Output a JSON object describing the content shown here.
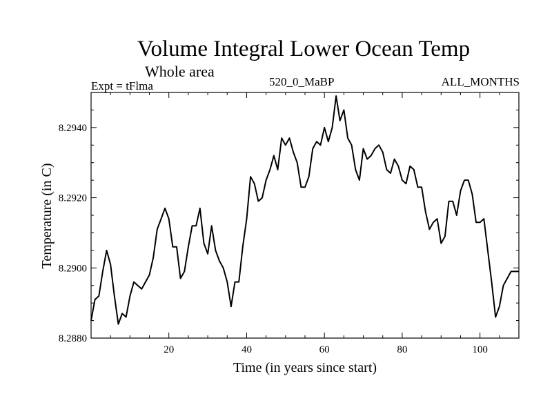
{
  "chart_data": {
    "type": "line",
    "title": "Volume Integral Lower Ocean Temp",
    "subtitle": "Whole area",
    "left_label": "Expt = tFlma",
    "center_label": "520_0_MaBP",
    "right_label": "ALL_MONTHS",
    "xlabel": "Time (in years since start)",
    "ylabel": "Temperature (in C)",
    "xlim": [
      0,
      110
    ],
    "ylim": [
      8.288,
      8.295
    ],
    "x_ticks": [
      20,
      40,
      60,
      80,
      100
    ],
    "x_tick_labels": [
      "20",
      "40",
      "60",
      "80",
      "100"
    ],
    "y_ticks": [
      8.288,
      8.29,
      8.292,
      8.294
    ],
    "y_tick_labels": [
      "8.2880",
      "8.2900",
      "8.2920",
      "8.2940"
    ],
    "grid": false,
    "series": [
      {
        "name": "Volume Integral Lower Ocean Temp",
        "x": [
          0,
          1,
          2,
          3,
          4,
          5,
          6,
          7,
          8,
          9,
          10,
          11,
          12,
          13,
          14,
          15,
          16,
          17,
          18,
          19,
          20,
          21,
          22,
          23,
          24,
          25,
          26,
          27,
          28,
          29,
          30,
          31,
          32,
          33,
          34,
          35,
          36,
          37,
          38,
          39,
          40,
          41,
          42,
          43,
          44,
          45,
          46,
          47,
          48,
          49,
          50,
          51,
          52,
          53,
          54,
          55,
          56,
          57,
          58,
          59,
          60,
          61,
          62,
          63,
          64,
          65,
          66,
          67,
          68,
          69,
          70,
          71,
          72,
          73,
          74,
          75,
          76,
          77,
          78,
          79,
          80,
          81,
          82,
          83,
          84,
          85,
          86,
          87,
          88,
          89,
          90,
          91,
          92,
          93,
          94,
          95,
          96,
          97,
          98,
          99,
          100,
          101,
          102,
          103,
          104,
          105,
          106,
          107,
          108,
          109,
          110
        ],
        "y": [
          8.2885,
          8.2891,
          8.2892,
          8.2899,
          8.2905,
          8.2901,
          8.2892,
          8.2884,
          8.2887,
          8.2886,
          8.2892,
          8.2896,
          8.2895,
          8.2894,
          8.2896,
          8.2898,
          8.2903,
          8.2911,
          8.2914,
          8.2917,
          8.2914,
          8.2906,
          8.2906,
          8.2897,
          8.2899,
          8.2906,
          8.2912,
          8.2912,
          8.2917,
          8.2907,
          8.2904,
          8.2912,
          8.2905,
          8.2902,
          8.29,
          8.2896,
          8.2889,
          8.2896,
          8.2896,
          8.2906,
          8.2914,
          8.2926,
          8.2924,
          8.2919,
          8.292,
          8.2925,
          8.2928,
          8.2932,
          8.2928,
          8.2937,
          8.2935,
          8.2937,
          8.2933,
          8.293,
          8.2923,
          8.2923,
          8.2926,
          8.2934,
          8.2936,
          8.2935,
          8.294,
          8.2936,
          8.294,
          8.2949,
          8.2942,
          8.2945,
          8.2937,
          8.2935,
          8.2928,
          8.2925,
          8.2934,
          8.2931,
          8.2932,
          8.2934,
          8.2935,
          8.2933,
          8.2928,
          8.2927,
          8.2931,
          8.2929,
          8.2925,
          8.2924,
          8.2929,
          8.2928,
          8.2923,
          8.2923,
          8.2916,
          8.2911,
          8.2913,
          8.2914,
          8.2907,
          8.2909,
          8.2919,
          8.2919,
          8.2915,
          8.2922,
          8.2925,
          8.2925,
          8.2921,
          8.2913,
          8.2913,
          8.2914,
          8.2905,
          8.2896,
          8.2886,
          8.2889,
          8.2895,
          8.2897,
          8.2899,
          8.2899,
          8.2899
        ]
      }
    ]
  }
}
